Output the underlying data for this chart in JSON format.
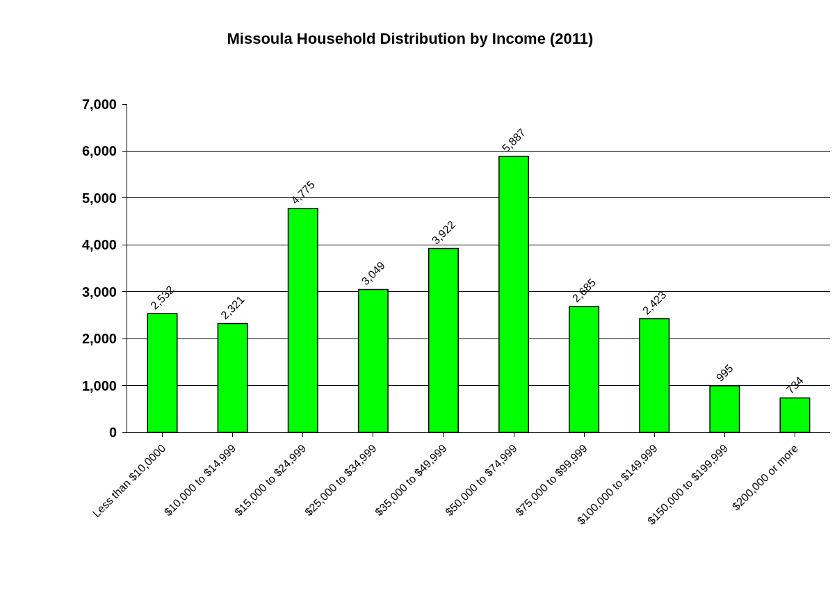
{
  "chart_data": {
    "type": "bar",
    "title": "Missoula Household Distribution by Income (2011)",
    "categories": [
      "Less than $10,0000",
      "$10,000 to $14,999",
      "$15,000 to $24,999",
      "$25,000 to $34,999",
      "$35,000 to $49,999",
      "$50,000 to $74,999",
      "$75,000 to $99,999",
      "$100,000 to $149,999",
      "$150,000 to $199,999",
      "$200,000 or more"
    ],
    "values": [
      2532,
      2321,
      4775,
      3049,
      3922,
      5887,
      2685,
      2423,
      995,
      734
    ],
    "color": "#00ff00",
    "ylim": [
      0,
      7000
    ],
    "yticks": [
      0,
      {
        "value": 1000,
        "label": "1,000"
      },
      {
        "value": 2000,
        "label": "2,000"
      },
      {
        "value": 3000,
        "label": "3,000"
      },
      {
        "value": 4000,
        "label": "4,000"
      },
      {
        "value": 5000,
        "label": "5,000"
      },
      {
        "value": 6000,
        "label": "6,000"
      },
      {
        "value": 7000,
        "label": "7,000"
      }
    ],
    "grid": "y",
    "value_labels": [
      "2,532",
      "2,321",
      "4,775",
      "3,049",
      "3,922",
      "5,887",
      "2,685",
      "2,423",
      "995",
      "734"
    ]
  }
}
